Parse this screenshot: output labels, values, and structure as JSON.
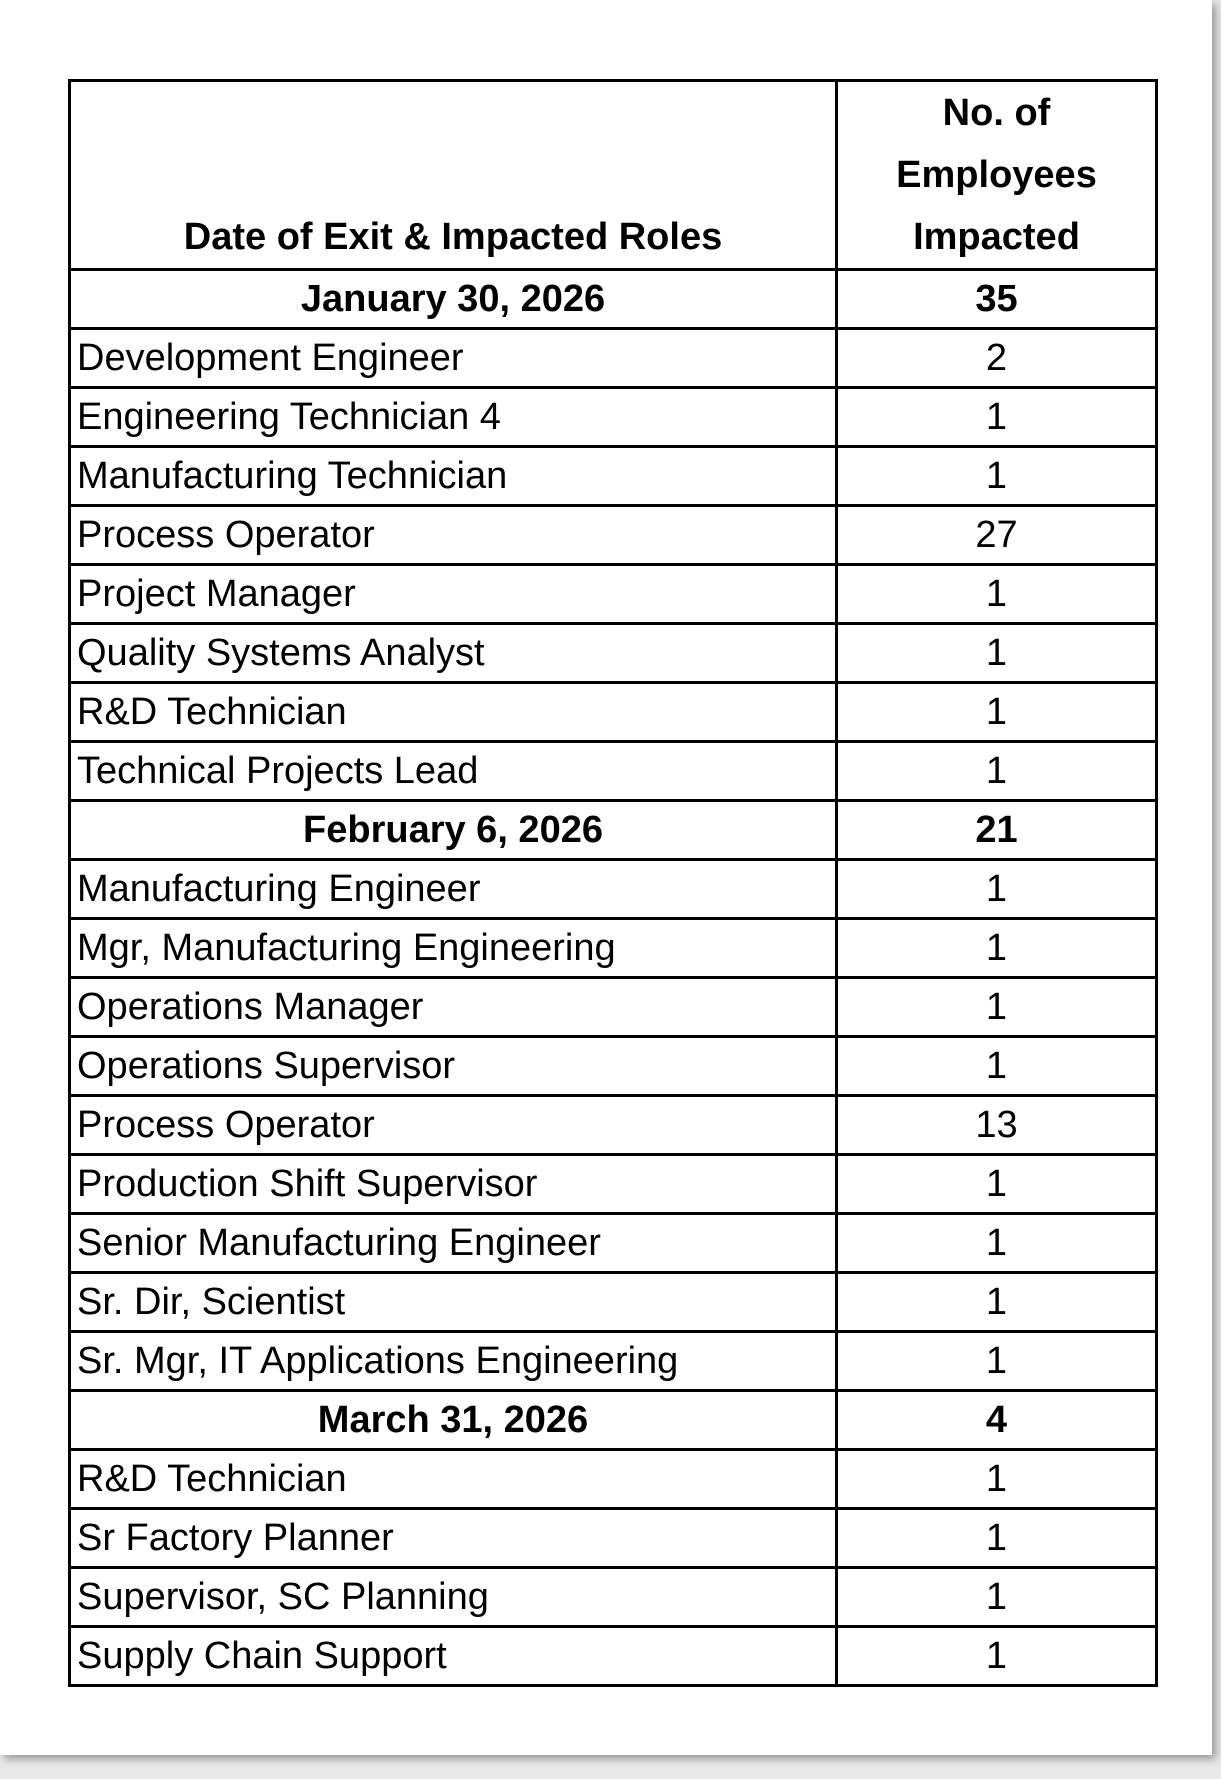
{
  "table": {
    "header": [
      "Date of Exit & Impacted Roles",
      "No. of Employees Impacted"
    ],
    "groups": [
      {
        "date": "January 30, 2026",
        "total": 35,
        "roles": [
          [
            "Development Engineer",
            2
          ],
          [
            "Engineering Technician 4",
            1
          ],
          [
            "Manufacturing Technician",
            1
          ],
          [
            "Process Operator",
            27
          ],
          [
            "Project Manager",
            1
          ],
          [
            "Quality Systems Analyst",
            1
          ],
          [
            "R&D Technician",
            1
          ],
          [
            "Technical Projects Lead",
            1
          ]
        ]
      },
      {
        "date": "February 6, 2026",
        "total": 21,
        "roles": [
          [
            "Manufacturing Engineer",
            1
          ],
          [
            "Mgr, Manufacturing Engineering",
            1
          ],
          [
            "Operations Manager",
            1
          ],
          [
            "Operations Supervisor",
            1
          ],
          [
            "Process Operator",
            13
          ],
          [
            "Production Shift Supervisor",
            1
          ],
          [
            "Senior Manufacturing Engineer",
            1
          ],
          [
            "Sr. Dir, Scientist",
            1
          ],
          [
            "Sr. Mgr, IT Applications Engineering",
            1
          ]
        ]
      },
      {
        "date": "March 31, 2026",
        "total": 4,
        "roles": [
          [
            "R&D Technician",
            1
          ],
          [
            "Sr Factory Planner",
            1
          ],
          [
            "Supervisor, SC Planning",
            1
          ],
          [
            "Supply Chain Support",
            1
          ]
        ]
      }
    ]
  }
}
